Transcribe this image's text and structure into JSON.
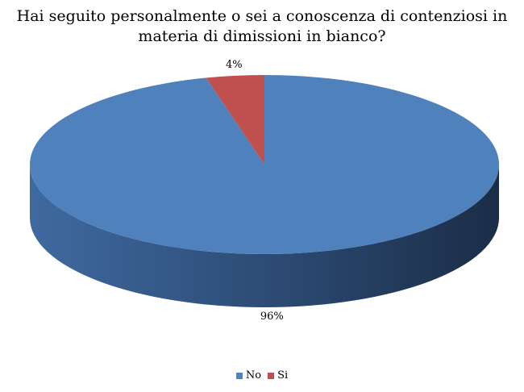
{
  "chart_data": {
    "type": "pie",
    "title_lines": [
      "Hai seguito personalmente o sei a conoscenza di contenziosi in",
      "materia di dimissioni in bianco?"
    ],
    "slices": [
      {
        "label": "No",
        "value": 96,
        "data_label": "96%",
        "color": "#4F81BD"
      },
      {
        "label": "Si",
        "value": 4,
        "data_label": "4%",
        "color": "#C0504D"
      }
    ],
    "legend_position": "bottom",
    "three_d": true
  }
}
